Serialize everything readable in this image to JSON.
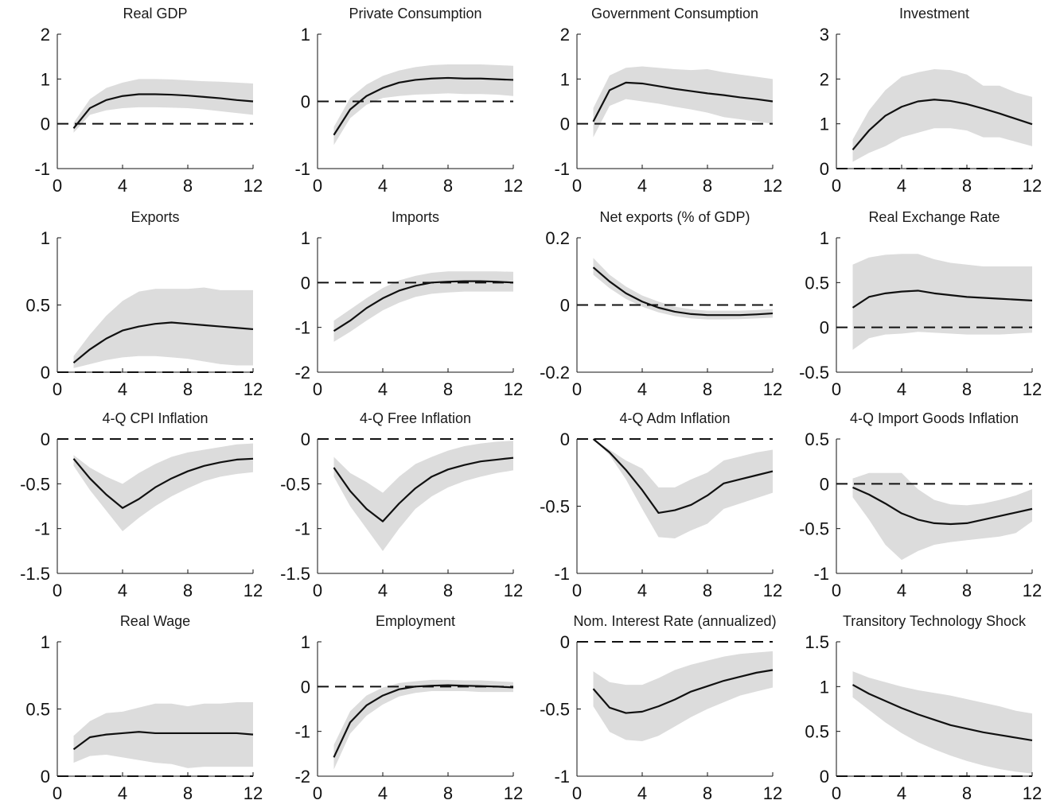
{
  "style": {
    "band_color": "#dcdcdc",
    "line_color": "#111111",
    "zero_line_color": "#111111",
    "axis_color": "#111111"
  },
  "chart_data": [
    {
      "type": "line",
      "title": "Real GDP",
      "x": [
        1,
        2,
        3,
        4,
        5,
        6,
        7,
        8,
        9,
        10,
        11,
        12
      ],
      "values": [
        -0.1,
        0.35,
        0.53,
        0.62,
        0.66,
        0.66,
        0.65,
        0.63,
        0.6,
        0.57,
        0.53,
        0.5
      ],
      "lower": [
        -0.2,
        0.2,
        0.3,
        0.35,
        0.37,
        0.37,
        0.36,
        0.35,
        0.32,
        0.28,
        0.24,
        0.2
      ],
      "upper": [
        0.02,
        0.55,
        0.8,
        0.92,
        1.0,
        1.0,
        0.99,
        0.97,
        0.95,
        0.94,
        0.92,
        0.9
      ],
      "xlim": [
        0,
        12
      ],
      "ylim": [
        -1,
        2
      ],
      "xticks": [
        0,
        4,
        8,
        12
      ],
      "yticks": [
        -1,
        0,
        1,
        2
      ],
      "xtick_labels": [
        "0",
        "4",
        "8",
        "12"
      ],
      "ytick_labels": [
        "-1",
        "0",
        "1",
        "2"
      ]
    },
    {
      "type": "line",
      "title": "Private Consumption",
      "x": [
        1,
        2,
        3,
        4,
        5,
        6,
        7,
        8,
        9,
        10,
        11,
        12
      ],
      "values": [
        -0.5,
        -0.12,
        0.08,
        0.2,
        0.28,
        0.32,
        0.34,
        0.35,
        0.34,
        0.34,
        0.33,
        0.32
      ],
      "lower": [
        -0.65,
        -0.25,
        -0.05,
        0.05,
        0.08,
        0.1,
        0.11,
        0.12,
        0.11,
        0.11,
        0.1,
        0.08
      ],
      "upper": [
        -0.38,
        0.05,
        0.25,
        0.38,
        0.46,
        0.51,
        0.54,
        0.55,
        0.55,
        0.55,
        0.54,
        0.53
      ],
      "xlim": [
        0,
        12
      ],
      "ylim": [
        -1,
        1
      ],
      "xticks": [
        0,
        4,
        8,
        12
      ],
      "yticks": [
        -1,
        0,
        1
      ],
      "xtick_labels": [
        "0",
        "4",
        "8",
        "12"
      ],
      "ytick_labels": [
        "-1",
        "0",
        "1"
      ]
    },
    {
      "type": "line",
      "title": "Government Consumption",
      "x": [
        1,
        2,
        3,
        4,
        5,
        6,
        7,
        8,
        9,
        10,
        11,
        12
      ],
      "values": [
        0.05,
        0.75,
        0.92,
        0.9,
        0.84,
        0.78,
        0.73,
        0.68,
        0.64,
        0.59,
        0.55,
        0.5
      ],
      "lower": [
        -0.3,
        0.4,
        0.55,
        0.5,
        0.45,
        0.38,
        0.32,
        0.25,
        0.15,
        0.1,
        0.05,
        0.0
      ],
      "upper": [
        0.35,
        1.08,
        1.25,
        1.28,
        1.25,
        1.22,
        1.2,
        1.22,
        1.15,
        1.1,
        1.05,
        1.0
      ],
      "xlim": [
        0,
        12
      ],
      "ylim": [
        -1,
        2
      ],
      "xticks": [
        0,
        4,
        8,
        12
      ],
      "yticks": [
        -1,
        0,
        1,
        2
      ],
      "xtick_labels": [
        "0",
        "4",
        "8",
        "12"
      ],
      "ytick_labels": [
        "-1",
        "0",
        "1",
        "2"
      ]
    },
    {
      "type": "line",
      "title": "Investment",
      "x": [
        1,
        2,
        3,
        4,
        5,
        6,
        7,
        8,
        9,
        10,
        11,
        12
      ],
      "values": [
        0.42,
        0.85,
        1.18,
        1.38,
        1.5,
        1.54,
        1.51,
        1.44,
        1.34,
        1.23,
        1.11,
        0.99
      ],
      "lower": [
        0.15,
        0.35,
        0.5,
        0.7,
        0.8,
        0.9,
        0.9,
        0.85,
        0.7,
        0.7,
        0.6,
        0.5
      ],
      "upper": [
        0.65,
        1.3,
        1.75,
        2.05,
        2.15,
        2.22,
        2.2,
        2.1,
        1.85,
        1.85,
        1.7,
        1.6
      ],
      "xlim": [
        0,
        12
      ],
      "ylim": [
        0,
        3
      ],
      "xticks": [
        0,
        4,
        8,
        12
      ],
      "yticks": [
        0,
        1,
        2,
        3
      ],
      "xtick_labels": [
        "0",
        "4",
        "8",
        "12"
      ],
      "ytick_labels": [
        "0",
        "1",
        "2",
        "3"
      ]
    },
    {
      "type": "line",
      "title": "Exports",
      "x": [
        1,
        2,
        3,
        4,
        5,
        6,
        7,
        8,
        9,
        10,
        11,
        12
      ],
      "values": [
        0.07,
        0.17,
        0.25,
        0.31,
        0.34,
        0.36,
        0.37,
        0.36,
        0.35,
        0.34,
        0.33,
        0.32
      ],
      "lower": [
        0.03,
        0.06,
        0.09,
        0.11,
        0.12,
        0.12,
        0.11,
        0.1,
        0.08,
        0.06,
        0.05,
        0.05
      ],
      "upper": [
        0.12,
        0.28,
        0.42,
        0.53,
        0.6,
        0.62,
        0.62,
        0.62,
        0.63,
        0.61,
        0.61,
        0.61
      ],
      "xlim": [
        0,
        12
      ],
      "ylim": [
        0,
        1
      ],
      "xticks": [
        0,
        4,
        8,
        12
      ],
      "yticks": [
        0,
        0.5,
        1
      ],
      "xtick_labels": [
        "0",
        "4",
        "8",
        "12"
      ],
      "ytick_labels": [
        "0",
        "0.5",
        "1"
      ]
    },
    {
      "type": "line",
      "title": "Imports",
      "x": [
        1,
        2,
        3,
        4,
        5,
        6,
        7,
        8,
        9,
        10,
        11,
        12
      ],
      "values": [
        -1.08,
        -0.85,
        -0.57,
        -0.35,
        -0.18,
        -0.07,
        0.0,
        0.02,
        0.03,
        0.03,
        0.02,
        0.0
      ],
      "lower": [
        -1.32,
        -1.1,
        -0.85,
        -0.62,
        -0.45,
        -0.32,
        -0.25,
        -0.22,
        -0.2,
        -0.2,
        -0.2,
        -0.2
      ],
      "upper": [
        -0.85,
        -0.6,
        -0.35,
        -0.12,
        0.05,
        0.15,
        0.22,
        0.25,
        0.25,
        0.25,
        0.25,
        0.24
      ],
      "xlim": [
        0,
        12
      ],
      "ylim": [
        -2,
        1
      ],
      "xticks": [
        0,
        4,
        8,
        12
      ],
      "yticks": [
        -2,
        -1,
        0,
        1
      ],
      "xtick_labels": [
        "0",
        "4",
        "8",
        "12"
      ],
      "ytick_labels": [
        "-2",
        "-1",
        "0",
        "1"
      ]
    },
    {
      "type": "line",
      "title": "Net exports (% of GDP)",
      "x": [
        1,
        2,
        3,
        4,
        5,
        6,
        7,
        8,
        9,
        10,
        11,
        12
      ],
      "values": [
        0.112,
        0.07,
        0.035,
        0.01,
        -0.008,
        -0.02,
        -0.027,
        -0.03,
        -0.03,
        -0.03,
        -0.028,
        -0.025
      ],
      "lower": [
        0.09,
        0.05,
        0.018,
        -0.005,
        -0.022,
        -0.033,
        -0.04,
        -0.043,
        -0.043,
        -0.042,
        -0.04,
        -0.038
      ],
      "upper": [
        0.14,
        0.09,
        0.055,
        0.028,
        0.01,
        -0.005,
        -0.013,
        -0.017,
        -0.017,
        -0.017,
        -0.015,
        -0.012
      ],
      "xlim": [
        0,
        12
      ],
      "ylim": [
        -0.2,
        0.2
      ],
      "xticks": [
        0,
        4,
        8,
        12
      ],
      "yticks": [
        -0.2,
        0,
        0.2
      ],
      "xtick_labels": [
        "0",
        "4",
        "8",
        "12"
      ],
      "ytick_labels": [
        "-0.2",
        "0",
        "0.2"
      ]
    },
    {
      "type": "line",
      "title": "Real Exchange Rate",
      "x": [
        1,
        2,
        3,
        4,
        5,
        6,
        7,
        8,
        9,
        10,
        11,
        12
      ],
      "values": [
        0.22,
        0.34,
        0.38,
        0.4,
        0.41,
        0.38,
        0.36,
        0.34,
        0.33,
        0.32,
        0.31,
        0.3
      ],
      "lower": [
        -0.25,
        -0.12,
        -0.08,
        -0.07,
        -0.05,
        -0.06,
        -0.07,
        -0.08,
        -0.08,
        -0.08,
        -0.07,
        -0.06
      ],
      "upper": [
        0.7,
        0.78,
        0.81,
        0.82,
        0.82,
        0.76,
        0.72,
        0.7,
        0.68,
        0.68,
        0.68,
        0.68
      ],
      "xlim": [
        0,
        12
      ],
      "ylim": [
        -0.5,
        1
      ],
      "xticks": [
        0,
        4,
        8,
        12
      ],
      "yticks": [
        -0.5,
        0,
        0.5,
        1
      ],
      "xtick_labels": [
        "0",
        "4",
        "8",
        "12"
      ],
      "ytick_labels": [
        "-0.5",
        "0",
        "0.5",
        "1"
      ]
    },
    {
      "type": "line",
      "title": "4-Q CPI Inflation",
      "x": [
        1,
        2,
        3,
        4,
        5,
        6,
        7,
        8,
        9,
        10,
        11,
        12
      ],
      "values": [
        -0.22,
        -0.44,
        -0.62,
        -0.77,
        -0.67,
        -0.54,
        -0.44,
        -0.36,
        -0.3,
        -0.26,
        -0.23,
        -0.22
      ],
      "lower": [
        -0.3,
        -0.57,
        -0.8,
        -1.03,
        -0.88,
        -0.75,
        -0.64,
        -0.55,
        -0.47,
        -0.42,
        -0.39,
        -0.37
      ],
      "upper": [
        -0.18,
        -0.32,
        -0.42,
        -0.5,
        -0.38,
        -0.28,
        -0.2,
        -0.15,
        -0.12,
        -0.09,
        -0.06,
        -0.05
      ],
      "xlim": [
        0,
        12
      ],
      "ylim": [
        -1.5,
        0
      ],
      "xticks": [
        0,
        4,
        8,
        12
      ],
      "yticks": [
        -1.5,
        -1,
        -0.5,
        0
      ],
      "xtick_labels": [
        "0",
        "4",
        "8",
        "12"
      ],
      "ytick_labels": [
        "-1.5",
        "-1",
        "-0.5",
        "0"
      ]
    },
    {
      "type": "line",
      "title": "4-Q Free Inflation",
      "x": [
        1,
        2,
        3,
        4,
        5,
        6,
        7,
        8,
        9,
        10,
        11,
        12
      ],
      "values": [
        -0.32,
        -0.58,
        -0.78,
        -0.92,
        -0.72,
        -0.55,
        -0.42,
        -0.34,
        -0.29,
        -0.25,
        -0.23,
        -0.21
      ],
      "lower": [
        -0.42,
        -0.75,
        -1.0,
        -1.25,
        -1.0,
        -0.78,
        -0.64,
        -0.54,
        -0.47,
        -0.42,
        -0.38,
        -0.35
      ],
      "upper": [
        -0.2,
        -0.38,
        -0.48,
        -0.6,
        -0.42,
        -0.28,
        -0.2,
        -0.13,
        -0.08,
        -0.05,
        -0.03,
        -0.02
      ],
      "xlim": [
        0,
        12
      ],
      "ylim": [
        -1.5,
        0
      ],
      "xticks": [
        0,
        4,
        8,
        12
      ],
      "yticks": [
        -1.5,
        -1,
        -0.5,
        0
      ],
      "xtick_labels": [
        "0",
        "4",
        "8",
        "12"
      ],
      "ytick_labels": [
        "-1.5",
        "-1",
        "-0.5",
        "0"
      ]
    },
    {
      "type": "line",
      "title": "4-Q Adm Inflation",
      "x": [
        1,
        2,
        3,
        4,
        5,
        6,
        7,
        8,
        9,
        10,
        11,
        12
      ],
      "values": [
        0.0,
        -0.1,
        -0.23,
        -0.38,
        -0.55,
        -0.53,
        -0.49,
        -0.42,
        -0.33,
        -0.3,
        -0.27,
        -0.24
      ],
      "lower": [
        0.0,
        -0.12,
        -0.3,
        -0.52,
        -0.73,
        -0.74,
        -0.68,
        -0.63,
        -0.52,
        -0.48,
        -0.44,
        -0.4
      ],
      "upper": [
        0.0,
        -0.08,
        -0.16,
        -0.22,
        -0.36,
        -0.36,
        -0.3,
        -0.25,
        -0.16,
        -0.13,
        -0.1,
        -0.08
      ],
      "xlim": [
        0,
        12
      ],
      "ylim": [
        -1,
        0
      ],
      "xticks": [
        0,
        4,
        8,
        12
      ],
      "yticks": [
        -1,
        -0.5,
        0
      ],
      "xtick_labels": [
        "0",
        "4",
        "8",
        "12"
      ],
      "ytick_labels": [
        "-1",
        "-0.5",
        "0"
      ]
    },
    {
      "type": "line",
      "title": "4-Q Import Goods Inflation",
      "x": [
        1,
        2,
        3,
        4,
        5,
        6,
        7,
        8,
        9,
        10,
        11,
        12
      ],
      "values": [
        -0.04,
        -0.12,
        -0.22,
        -0.33,
        -0.4,
        -0.44,
        -0.45,
        -0.44,
        -0.4,
        -0.36,
        -0.32,
        -0.28
      ],
      "lower": [
        -0.15,
        -0.4,
        -0.68,
        -0.85,
        -0.75,
        -0.68,
        -0.65,
        -0.63,
        -0.61,
        -0.59,
        -0.55,
        -0.42
      ],
      "upper": [
        0.06,
        0.12,
        0.12,
        0.12,
        -0.06,
        -0.18,
        -0.23,
        -0.24,
        -0.22,
        -0.18,
        -0.13,
        -0.06
      ],
      "xlim": [
        0,
        12
      ],
      "ylim": [
        -1,
        0.5
      ],
      "xticks": [
        0,
        4,
        8,
        12
      ],
      "yticks": [
        -1,
        -0.5,
        0,
        0.5
      ],
      "xtick_labels": [
        "0",
        "4",
        "8",
        "12"
      ],
      "ytick_labels": [
        "-1",
        "-0.5",
        "0",
        "0.5"
      ]
    },
    {
      "type": "line",
      "title": "Real Wage",
      "x": [
        1,
        2,
        3,
        4,
        5,
        6,
        7,
        8,
        9,
        10,
        11,
        12
      ],
      "values": [
        0.2,
        0.29,
        0.31,
        0.32,
        0.33,
        0.32,
        0.32,
        0.32,
        0.32,
        0.32,
        0.32,
        0.31
      ],
      "lower": [
        0.1,
        0.15,
        0.16,
        0.14,
        0.12,
        0.1,
        0.09,
        0.06,
        0.07,
        0.07,
        0.07,
        0.07
      ],
      "upper": [
        0.3,
        0.41,
        0.47,
        0.48,
        0.51,
        0.54,
        0.54,
        0.52,
        0.54,
        0.54,
        0.55,
        0.55
      ],
      "xlim": [
        0,
        12
      ],
      "ylim": [
        0,
        1
      ],
      "xticks": [
        0,
        4,
        8,
        12
      ],
      "yticks": [
        0,
        0.5,
        1
      ],
      "xtick_labels": [
        "0",
        "4",
        "8",
        "12"
      ],
      "ytick_labels": [
        "0",
        "0.5",
        "1"
      ]
    },
    {
      "type": "line",
      "title": "Employment",
      "x": [
        1,
        2,
        3,
        4,
        5,
        6,
        7,
        8,
        9,
        10,
        11,
        12
      ],
      "values": [
        -1.58,
        -0.8,
        -0.42,
        -0.2,
        -0.06,
        0.0,
        0.02,
        0.03,
        0.02,
        0.01,
        0.0,
        -0.02
      ],
      "lower": [
        -1.85,
        -1.05,
        -0.65,
        -0.4,
        -0.22,
        -0.14,
        -0.1,
        -0.1,
        -0.1,
        -0.12,
        -0.12,
        -0.12
      ],
      "upper": [
        -1.3,
        -0.55,
        -0.2,
        -0.02,
        0.08,
        0.12,
        0.15,
        0.15,
        0.14,
        0.14,
        0.12,
        0.1
      ],
      "xlim": [
        0,
        12
      ],
      "ylim": [
        -2,
        1
      ],
      "xticks": [
        0,
        4,
        8,
        12
      ],
      "yticks": [
        -2,
        -1,
        0,
        1
      ],
      "xtick_labels": [
        "0",
        "4",
        "8",
        "12"
      ],
      "ytick_labels": [
        "-2",
        "-1",
        "0",
        "1"
      ]
    },
    {
      "type": "line",
      "title": "Nom. Interest Rate (annualized)",
      "x": [
        1,
        2,
        3,
        4,
        5,
        6,
        7,
        8,
        9,
        10,
        11,
        12
      ],
      "values": [
        -0.35,
        -0.49,
        -0.53,
        -0.52,
        -0.48,
        -0.43,
        -0.37,
        -0.33,
        -0.29,
        -0.26,
        -0.23,
        -0.21
      ],
      "lower": [
        -0.48,
        -0.67,
        -0.73,
        -0.74,
        -0.7,
        -0.63,
        -0.56,
        -0.5,
        -0.45,
        -0.4,
        -0.37,
        -0.34
      ],
      "upper": [
        -0.22,
        -0.3,
        -0.32,
        -0.32,
        -0.27,
        -0.21,
        -0.17,
        -0.14,
        -0.11,
        -0.09,
        -0.08,
        -0.07
      ],
      "xlim": [
        0,
        12
      ],
      "ylim": [
        -1,
        0
      ],
      "xticks": [
        0,
        4,
        8,
        12
      ],
      "yticks": [
        -1,
        -0.5,
        0
      ],
      "xtick_labels": [
        "0",
        "4",
        "8",
        "12"
      ],
      "ytick_labels": [
        "-1",
        "-0.5",
        "0"
      ]
    },
    {
      "type": "line",
      "title": "Transitory Technology Shock",
      "x": [
        1,
        2,
        3,
        4,
        5,
        6,
        7,
        8,
        9,
        10,
        11,
        12
      ],
      "values": [
        1.02,
        0.92,
        0.84,
        0.76,
        0.69,
        0.63,
        0.57,
        0.53,
        0.49,
        0.46,
        0.43,
        0.4
      ],
      "lower": [
        0.88,
        0.74,
        0.6,
        0.48,
        0.38,
        0.3,
        0.23,
        0.17,
        0.12,
        0.08,
        0.05,
        0.03
      ],
      "upper": [
        1.17,
        1.1,
        1.05,
        1.0,
        0.96,
        0.93,
        0.9,
        0.86,
        0.82,
        0.78,
        0.73,
        0.7
      ],
      "xlim": [
        0,
        12
      ],
      "ylim": [
        0,
        1.5
      ],
      "xticks": [
        0,
        4,
        8,
        12
      ],
      "yticks": [
        0,
        0.5,
        1,
        1.5
      ],
      "xtick_labels": [
        "0",
        "4",
        "8",
        "12"
      ],
      "ytick_labels": [
        "0",
        "0.5",
        "1",
        "1.5"
      ]
    }
  ]
}
